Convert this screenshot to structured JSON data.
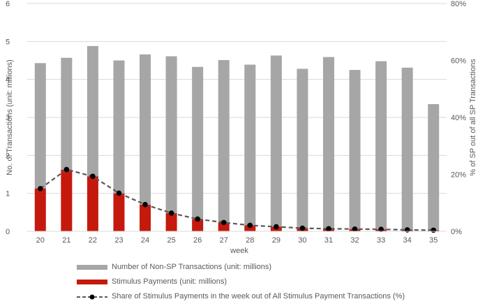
{
  "chart_data": {
    "type": "bar",
    "title": "",
    "xlabel": "week",
    "ylabel": "No. of Transactions (unit: millions)",
    "y2label": "% of SP out of all SP Transactions",
    "categories": [
      "20",
      "21",
      "22",
      "23",
      "24",
      "25",
      "26",
      "27",
      "28",
      "29",
      "30",
      "31",
      "32",
      "33",
      "34",
      "35"
    ],
    "ylim": [
      0,
      6
    ],
    "y2lim": [
      0,
      80
    ],
    "yticks": [
      "0",
      "1",
      "2",
      "3",
      "4",
      "5",
      "6"
    ],
    "y2ticks": [
      "0%",
      "20%",
      "40%",
      "60%",
      "80%"
    ],
    "gridlines": true,
    "stacked": true,
    "series": [
      {
        "name": "Stimulus Payments (unit: millions)",
        "kind": "bar",
        "color": "#c5190e",
        "values": [
          1.13,
          1.62,
          1.45,
          1.0,
          0.7,
          0.48,
          0.32,
          0.24,
          0.16,
          0.12,
          0.08,
          0.07,
          0.06,
          0.05,
          0.04,
          0.03
        ]
      },
      {
        "name": "Number of Non-SP Transactions (unit: millions)",
        "kind": "bar",
        "color": "#a6a6a6",
        "values": [
          3.3,
          2.95,
          3.43,
          3.5,
          3.96,
          4.13,
          4.01,
          4.27,
          4.23,
          4.51,
          4.2,
          4.52,
          4.19,
          4.43,
          4.27,
          3.32
        ]
      },
      {
        "name": "Share of Stimulus Payments in the week out of All Stimulus Payment Transactions (%)",
        "kind": "line",
        "axis": "right",
        "color": "#595959",
        "marker_color": "#000000",
        "values": [
          15.0,
          21.7,
          19.3,
          13.4,
          9.4,
          6.4,
          4.3,
          3.1,
          2.1,
          1.6,
          1.1,
          0.9,
          0.8,
          0.7,
          0.5,
          0.4
        ]
      }
    ],
    "legend": {
      "position": "bottom",
      "order": [
        "Number of Non-SP Transactions (unit: millions)",
        "Stimulus Payments (unit: millions)",
        "Share of Stimulus Payments in the week out of All Stimulus Payment Transactions (%)"
      ]
    }
  }
}
